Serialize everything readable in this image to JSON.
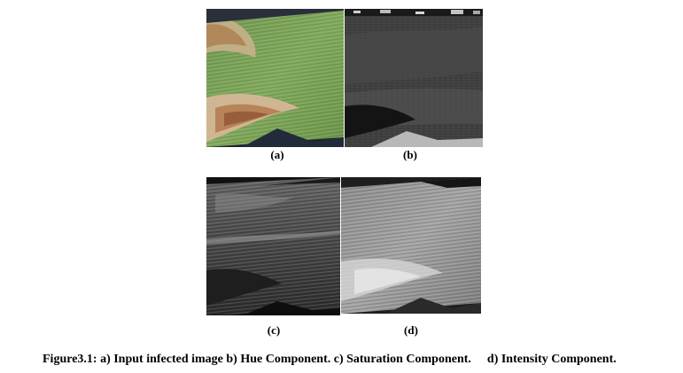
{
  "figure": {
    "panels": [
      {
        "id": "a",
        "label": "(a)"
      },
      {
        "id": "b",
        "label": "(b)"
      },
      {
        "id": "c",
        "label": "(c)"
      },
      {
        "id": "d",
        "label": "(d)"
      }
    ],
    "caption": {
      "part1": "Figure3.1: a) Input infected image b) Hue Component. c) Saturation Component.",
      "part2": "d) Intensity Component."
    }
  }
}
